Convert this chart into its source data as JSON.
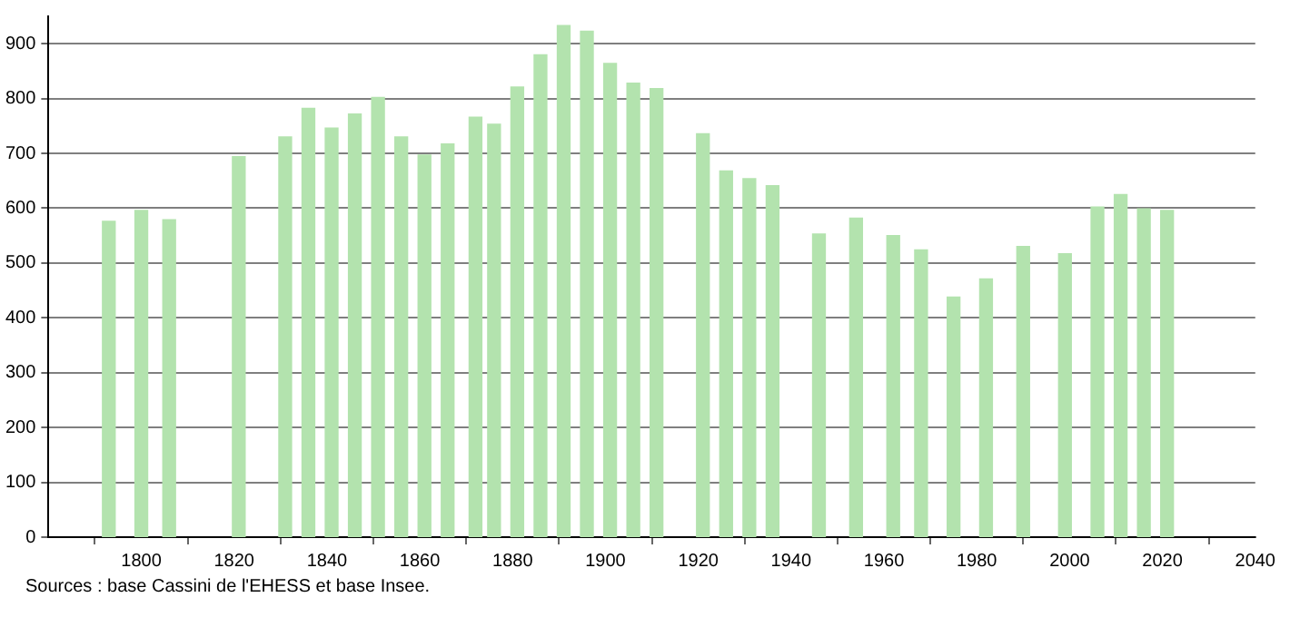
{
  "chart_data": {
    "type": "bar",
    "x": [
      1793,
      1800,
      1806,
      1821,
      1831,
      1836,
      1841,
      1846,
      1851,
      1856,
      1861,
      1866,
      1872,
      1876,
      1881,
      1886,
      1891,
      1896,
      1901,
      1906,
      1911,
      1921,
      1926,
      1931,
      1936,
      1946,
      1954,
      1962,
      1968,
      1975,
      1982,
      1990,
      1999,
      2006,
      2011,
      2016,
      2021
    ],
    "values": [
      576,
      596,
      579,
      694,
      730,
      782,
      746,
      772,
      802,
      730,
      697,
      717,
      766,
      753,
      821,
      880,
      933,
      923,
      864,
      828,
      818,
      736,
      668,
      654,
      641,
      553,
      582,
      550,
      524,
      438,
      471,
      530,
      517,
      602,
      625,
      599,
      596
    ],
    "color": "#b3e3ae",
    "xlim": [
      1780,
      2040
    ],
    "xticks": [
      1800,
      1820,
      1840,
      1860,
      1880,
      1900,
      1920,
      1940,
      1960,
      1980,
      2000,
      2020,
      2040
    ],
    "ylim": [
      0,
      950
    ],
    "yticks": [
      0,
      100,
      200,
      300,
      400,
      500,
      600,
      700,
      800,
      900
    ],
    "grid": "y",
    "legend": false,
    "annotations": [
      "Sources : base Cassini de l'EHESS et base Insee."
    ]
  }
}
